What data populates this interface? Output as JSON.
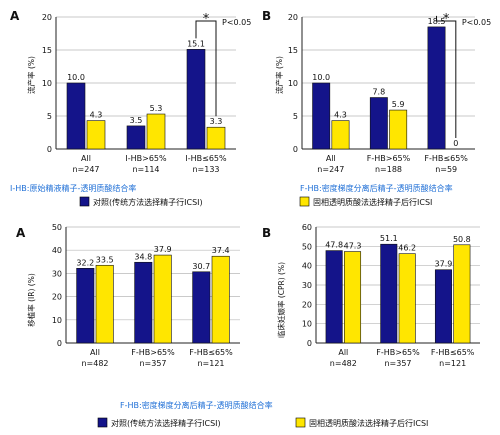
{
  "colors": {
    "control": "#14148a",
    "treatment": "#ffe600",
    "caption": "#1f6fd6",
    "grid": "#b8b8b8"
  },
  "chart_data": [
    {
      "type": "bar",
      "panel_letter": "A",
      "ylabel": "流产率 (%)",
      "ylim": [
        0,
        20
      ],
      "yticks": [
        0,
        5,
        10,
        15,
        20
      ],
      "categories": [
        {
          "label": "All",
          "n": "n=247"
        },
        {
          "label": "I-HB>65%",
          "n": "n=114"
        },
        {
          "label": "I-HB≤65%",
          "n": "n=133"
        }
      ],
      "series": [
        {
          "key": "control",
          "values": [
            10.0,
            3.5,
            15.1
          ],
          "labels": [
            "10.0",
            "3.5",
            "15.1"
          ]
        },
        {
          "key": "treatment",
          "values": [
            4.3,
            5.3,
            3.3
          ],
          "labels": [
            "4.3",
            "5.3",
            "3.3"
          ]
        }
      ],
      "significance": {
        "category_index": 2,
        "star": "*",
        "p_text": "P<0.05"
      },
      "caption": "I-HB:原始精液精子-透明质酸结合率",
      "legend": {
        "control": "对照(传统方法选择精子行ICSI)",
        "treatment": "固相透明质酸法选择精子后行ICSI"
      },
      "grid": true
    },
    {
      "type": "bar",
      "panel_letter": "B",
      "ylabel": "流产率 (%)",
      "ylim": [
        0,
        20
      ],
      "yticks": [
        0,
        5,
        10,
        15,
        20
      ],
      "categories": [
        {
          "label": "All",
          "n": "n=247"
        },
        {
          "label": "F-HB>65%",
          "n": "n=188"
        },
        {
          "label": "F-HB≤65%",
          "n": "n=59"
        }
      ],
      "series": [
        {
          "key": "control",
          "values": [
            10.0,
            7.8,
            18.5
          ],
          "labels": [
            "10.0",
            "7.8",
            "18.5"
          ]
        },
        {
          "key": "treatment",
          "values": [
            4.3,
            5.9,
            0
          ],
          "labels": [
            "4.3",
            "5.9",
            "0"
          ]
        }
      ],
      "significance": {
        "category_index": 2,
        "star": "*",
        "p_text": "P<0.05"
      },
      "caption": "F-HB:密度梯度分离后精子-透明质酸结合率",
      "legend": {
        "control": "对照(传统方法选择精子行ICSI)",
        "treatment": "固相透明质酸法选择精子后行ICSI"
      },
      "grid": true
    },
    {
      "type": "bar",
      "panel_letter": "A",
      "ylabel": "移植率 (IR) (%)",
      "ylim": [
        0,
        50
      ],
      "yticks": [
        0,
        10,
        20,
        30,
        40,
        50
      ],
      "categories": [
        {
          "label": "All",
          "n": "n=482"
        },
        {
          "label": "F-HB>65%",
          "n": "n=357"
        },
        {
          "label": "F-HB≤65%",
          "n": "n=121"
        }
      ],
      "series": [
        {
          "key": "control",
          "values": [
            32.2,
            34.8,
            30.7
          ],
          "labels": [
            "32.2",
            "34.8",
            "30.7"
          ]
        },
        {
          "key": "treatment",
          "values": [
            33.5,
            37.9,
            37.4
          ],
          "labels": [
            "33.5",
            "37.9",
            "37.4"
          ]
        }
      ],
      "grid": true
    },
    {
      "type": "bar",
      "panel_letter": "B",
      "ylabel": "临床妊娠率 (CPR) (%)",
      "ylim": [
        0,
        60
      ],
      "yticks": [
        0,
        10,
        20,
        30,
        40,
        50,
        60
      ],
      "categories": [
        {
          "label": "All",
          "n": "n=482"
        },
        {
          "label": "F-HB>65%",
          "n": "n=357"
        },
        {
          "label": "F-HB≤65%",
          "n": "n=121"
        }
      ],
      "series": [
        {
          "key": "control",
          "values": [
            47.8,
            51.1,
            37.9
          ],
          "labels": [
            "47.8",
            "51.1",
            "37.9"
          ]
        },
        {
          "key": "treatment",
          "values": [
            47.3,
            46.2,
            50.8
          ],
          "labels": [
            "47.3",
            "46.2",
            "50.8"
          ]
        }
      ],
      "grid": true
    }
  ],
  "bottom_caption": "F-HB:密度梯度分离后精子-透明质酸结合率",
  "bottom_legend": {
    "control": "对照(传统方法选择精子行ICSI)",
    "treatment": "固相透明质酸法选择精子后行ICSI"
  }
}
